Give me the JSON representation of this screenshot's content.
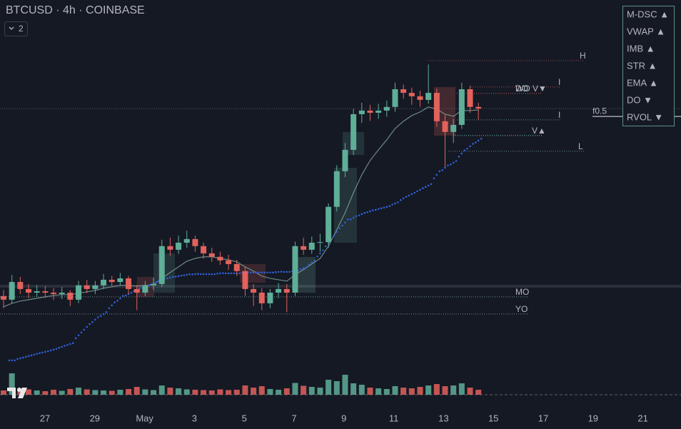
{
  "header": {
    "title": "BTCUSD · 4h · COINBASE",
    "badge": "2"
  },
  "legend": [
    {
      "label": "M-DSC ▲",
      "color": "#8fd3c0"
    },
    {
      "label": "VWAP ▲",
      "color": "#8fd3c0"
    },
    {
      "label": "IMB ▲",
      "color": "#8fd3c0"
    },
    {
      "label": "STR ▲",
      "color": "#8fd3c0"
    },
    {
      "label": "EMA ▲",
      "color": "#8fd3c0"
    },
    {
      "label": "DO ▼",
      "color": "#e06262"
    },
    {
      "label": "RVOL ▼",
      "color": "#e06262"
    }
  ],
  "chart_data": {
    "type": "candlestick",
    "xticks": [
      "27",
      "29",
      "May",
      "3",
      "5",
      "7",
      "9",
      "11",
      "13",
      "15",
      "17",
      "19",
      "21"
    ],
    "ylim": [
      87700,
      109000
    ],
    "up_color": "#5fae98",
    "down_color": "#e2625c",
    "open": [
      94300,
      94120,
      95000,
      94650,
      94470,
      94540,
      94470,
      94400,
      94470,
      94120,
      94830,
      94650,
      94830,
      95110,
      95000,
      95180,
      94650,
      94470,
      94830,
      94900,
      96780,
      96600,
      96950,
      97130,
      96780,
      96420,
      96250,
      96070,
      95890,
      95540,
      94650,
      94470,
      93940,
      94470,
      94650,
      94470,
      96780,
      96600,
      96950,
      96980,
      98730,
      100500,
      101560,
      103330,
      103510,
      103400,
      103510,
      103690,
      104570,
      104390,
      104220,
      104040,
      104390,
      102980,
      102450,
      102800,
      104570,
      103690
    ],
    "high": [
      94600,
      95350,
      95250,
      94900,
      94850,
      94800,
      94700,
      94750,
      94600,
      95050,
      95100,
      95050,
      95400,
      95300,
      95450,
      95300,
      94850,
      95050,
      95200,
      97100,
      97200,
      97300,
      97550,
      97300,
      96950,
      96700,
      96500,
      96350,
      96100,
      95750,
      94900,
      94700,
      94650,
      94950,
      94900,
      97000,
      97200,
      97250,
      97400,
      98900,
      100800,
      101900,
      103600,
      103900,
      103800,
      103850,
      104000,
      104900,
      104800,
      104650,
      104500,
      105800,
      104600,
      103300,
      103100,
      104900,
      104750,
      103900
    ],
    "low": [
      93700,
      93950,
      94400,
      94200,
      94250,
      94200,
      94100,
      94150,
      93800,
      93950,
      94450,
      94400,
      94650,
      94800,
      94850,
      94400,
      93600,
      94300,
      94600,
      94750,
      96300,
      96400,
      96700,
      96500,
      96150,
      96000,
      95850,
      95600,
      95300,
      94300,
      93800,
      93600,
      93700,
      94200,
      93500,
      94300,
      96350,
      96400,
      96500,
      96700,
      98500,
      100200,
      101300,
      102900,
      103000,
      103100,
      103200,
      103450,
      104100,
      103800,
      103700,
      103850,
      102700,
      100700,
      101900,
      102600,
      103400,
      103050
    ],
    "close": [
      94120,
      95000,
      94650,
      94470,
      94540,
      94470,
      94400,
      94470,
      94120,
      94830,
      94650,
      94830,
      95110,
      95000,
      95180,
      94650,
      94470,
      94830,
      94900,
      96780,
      96600,
      96950,
      97130,
      96780,
      96420,
      96250,
      96070,
      95890,
      95540,
      94650,
      94470,
      93940,
      94470,
      94650,
      94470,
      96780,
      96600,
      96950,
      96980,
      98730,
      100500,
      101560,
      103330,
      103510,
      103400,
      103510,
      103690,
      104570,
      104390,
      104220,
      104040,
      104390,
      102980,
      102450,
      102800,
      104570,
      103690,
      103610
    ],
    "volume": [
      120,
      600,
      180,
      150,
      120,
      100,
      140,
      110,
      160,
      200,
      150,
      130,
      120,
      110,
      140,
      160,
      220,
      150,
      130,
      260,
      200,
      180,
      150,
      140,
      130,
      120,
      150,
      130,
      140,
      260,
      200,
      240,
      160,
      140,
      180,
      330,
      250,
      220,
      200,
      420,
      380,
      560,
      320,
      280,
      200,
      180,
      160,
      240,
      200,
      180,
      220,
      260,
      300,
      240,
      260,
      320,
      200,
      140
    ],
    "ema": {
      "color": "#8fb8ad",
      "values": [
        93770,
        93940,
        94050,
        94120,
        94190,
        94260,
        94330,
        94370,
        94370,
        94440,
        94510,
        94580,
        94690,
        94760,
        94830,
        94830,
        94790,
        94830,
        94860,
        95180,
        95470,
        95750,
        96030,
        96170,
        96250,
        96250,
        96170,
        96100,
        96000,
        95750,
        95540,
        95290,
        95180,
        95110,
        95040,
        95360,
        95610,
        95890,
        96170,
        96780,
        97590,
        98440,
        99430,
        100320,
        101030,
        101560,
        102060,
        102620,
        102980,
        103260,
        103440,
        103690,
        103580,
        103330,
        103230,
        103510,
        103510,
        103540
      ]
    },
    "vwap": {
      "color": "#2f5fd8",
      "values": [
        null,
        91110,
        91210,
        91320,
        91430,
        91530,
        91640,
        91780,
        91920,
        92350,
        92770,
        93130,
        93410,
        93840,
        94190,
        94400,
        94620,
        94760,
        94930,
        95110,
        95220,
        95290,
        95360,
        95390,
        95390,
        95390,
        95430,
        95430,
        95430,
        95470,
        95470,
        95470,
        95470,
        95500,
        95500,
        95540,
        95680,
        95960,
        96420,
        96950,
        97490,
        97950,
        98190,
        98370,
        98510,
        98620,
        98730,
        98900,
        99150,
        99360,
        99580,
        99790,
        100320,
        100670,
        100920,
        101380,
        101740,
        102020
      ]
    },
    "levels": [
      {
        "label": "H",
        "value": 105990,
        "color": "#8a4d4d"
      },
      {
        "label": "I",
        "value": 104680,
        "color": "#9a5050"
      },
      {
        "label": "WO V▼",
        "value": 104360,
        "color": "#e06262"
      },
      {
        "label": "DO",
        "value": 104360,
        "color": "#9a5050"
      },
      {
        "label": "I",
        "value": 103050,
        "color": "#5f8f84"
      },
      {
        "label": "V▲",
        "value": 102270,
        "color": "#7ec8b3"
      },
      {
        "label": "L",
        "value": 101490,
        "color": "#5f8f84"
      },
      {
        "label": "MO",
        "value": 94260,
        "color": "#6f8f89"
      },
      {
        "label": "YO",
        "value": 93410,
        "color": "#6f8f89"
      },
      {
        "label": "f0.5",
        "value": 103610,
        "color": "#e8e8e8"
      }
    ]
  }
}
